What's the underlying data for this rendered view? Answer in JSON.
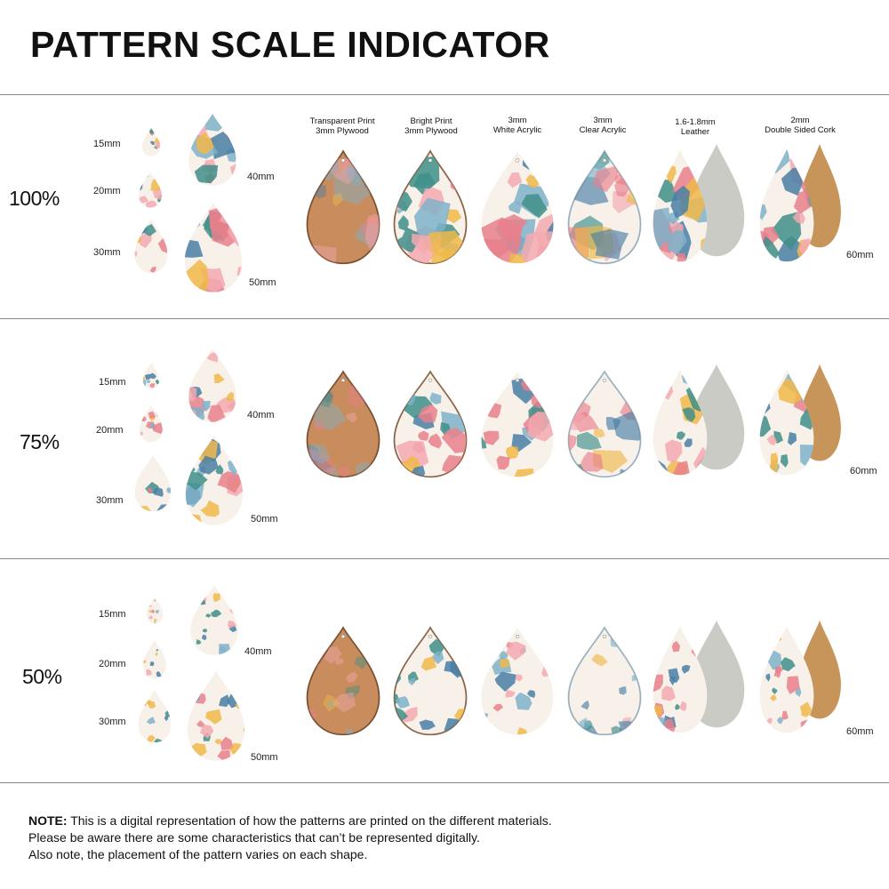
{
  "title": "PATTERN SCALE INDICATOR",
  "size_labels": {
    "s15": "15mm",
    "s20": "20mm",
    "s30": "30mm",
    "s40": "40mm",
    "s50": "50mm",
    "s60": "60mm"
  },
  "materials": [
    {
      "id": "transparent-plywood",
      "label": "Transparent Print\n3mm Plywood"
    },
    {
      "id": "bright-plywood",
      "label": "Bright Print\n3mm Plywood"
    },
    {
      "id": "white-acrylic",
      "label": "3mm\nWhite Acrylic"
    },
    {
      "id": "clear-acrylic",
      "label": "3mm\nClear Acrylic"
    },
    {
      "id": "leather",
      "label": "1.6-1.8mm\nLeather"
    },
    {
      "id": "cork",
      "label": "2mm\nDouble Sided Cork"
    }
  ],
  "scales": [
    {
      "label": "100%"
    },
    {
      "label": "75%"
    },
    {
      "label": "50%"
    }
  ],
  "note": {
    "bold": "NOTE:",
    "line1": " This is a digital representation of how the patterns are printed on the different materials.",
    "line2": "Please be aware there are some characteristics that can’t be represented digitally.",
    "line3": "Also note, the placement of the pattern varies on each shape."
  },
  "colors": {
    "pink": "#e8808c",
    "blue": "#4a7fa6",
    "teal": "#3f8f8a",
    "yellow": "#f0b94a",
    "cream": "#f7f1ea",
    "wood": "#c98c5c",
    "leather_back": "#c9cbc4",
    "cork": "#c7955a"
  }
}
